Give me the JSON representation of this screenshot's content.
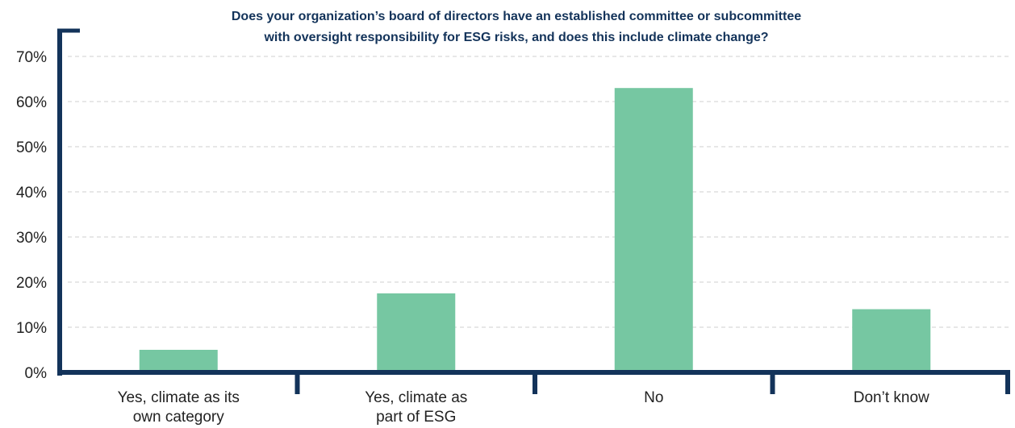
{
  "chart_data": {
    "type": "bar",
    "title_lines": [
      "Does your organization’s board of directors have an established committee or subcommittee",
      "with oversight responsibility for ESG risks, and does this include climate change?"
    ],
    "categories": [
      [
        "Yes, climate as its",
        "own category"
      ],
      [
        "Yes, climate as",
        "part of ESG"
      ],
      [
        "No"
      ],
      [
        "Don’t know"
      ]
    ],
    "values": [
      5,
      17.5,
      63,
      14
    ],
    "ylim": [
      0,
      70
    ],
    "y_ticks": [
      "0%",
      "10%",
      "20%",
      "30%",
      "40%",
      "50%",
      "60%",
      "70%"
    ],
    "y_tick_values": [
      0,
      10,
      20,
      30,
      40,
      50,
      60,
      70
    ],
    "grid": true,
    "colors": {
      "bar": "#76c7a2",
      "axis": "#13335a",
      "title": "#13335a",
      "grid": "#cfcfcf",
      "text": "#222222"
    }
  }
}
